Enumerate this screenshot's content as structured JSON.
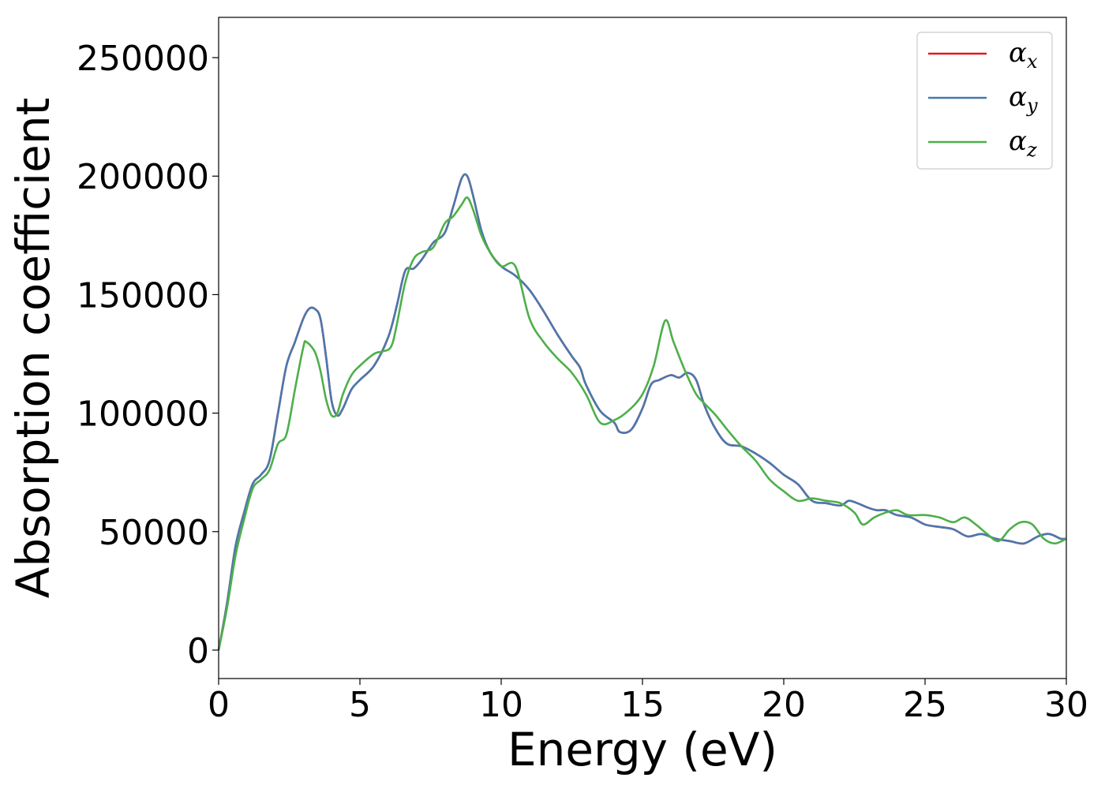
{
  "chart_data": {
    "type": "line",
    "xlabel": "Energy (eV)",
    "ylabel": "Absorption coefficient",
    "xlim": [
      0,
      30
    ],
    "ylim": [
      -12000,
      267000
    ],
    "xticks": [
      0,
      5,
      10,
      15,
      20,
      25,
      30
    ],
    "yticks": [
      0,
      50000,
      100000,
      150000,
      200000,
      250000
    ],
    "grid": false,
    "legend_position": "top-right",
    "series": [
      {
        "name": "αx",
        "symbol": "α",
        "subscript": "x",
        "color": "#e41a1c",
        "x": [
          0,
          0.3,
          0.6,
          0.9,
          1.2,
          1.5,
          1.8,
          2.1,
          2.4,
          2.7,
          3.0,
          3.2,
          3.4,
          3.6,
          3.8,
          4.0,
          4.2,
          4.4,
          4.7,
          5.0,
          5.5,
          6.0,
          6.3,
          6.6,
          6.9,
          7.2,
          7.6,
          8.0,
          8.3,
          8.6,
          8.8,
          9.0,
          9.3,
          9.6,
          10.0,
          10.5,
          11.0,
          11.5,
          12.0,
          12.5,
          12.8,
          13.0,
          13.5,
          14.0,
          14.2,
          14.6,
          15.0,
          15.3,
          15.6,
          16.0,
          16.3,
          16.6,
          16.9,
          17.2,
          17.6,
          18.0,
          18.5,
          19.0,
          19.5,
          20.0,
          20.5,
          21.0,
          21.5,
          22.0,
          22.3,
          22.6,
          23.0,
          23.3,
          23.6,
          24.0,
          24.5,
          25.0,
          25.5,
          26.0,
          26.5,
          27.0,
          27.5,
          28.0,
          28.5,
          29.0,
          29.4,
          29.8,
          30.0
        ],
        "y": [
          0,
          20000,
          44000,
          58000,
          70000,
          74000,
          80000,
          100000,
          120000,
          130000,
          140000,
          144000,
          144000,
          140000,
          124000,
          105000,
          99000,
          102000,
          110000,
          114000,
          120000,
          132000,
          145000,
          160000,
          161000,
          165000,
          172000,
          176000,
          187000,
          199000,
          200000,
          192000,
          177000,
          168000,
          162000,
          158000,
          152000,
          143000,
          133000,
          124000,
          119000,
          112000,
          101000,
          96000,
          92000,
          93000,
          102000,
          112000,
          114000,
          116000,
          115000,
          117000,
          114000,
          103000,
          93000,
          87000,
          86000,
          83000,
          79000,
          74000,
          70000,
          63000,
          62000,
          61000,
          63000,
          62000,
          60000,
          59000,
          59000,
          57000,
          56000,
          53000,
          52000,
          51000,
          48000,
          49000,
          47000,
          46000,
          45000,
          48000,
          49000,
          47000,
          47000
        ]
      },
      {
        "name": "αy",
        "symbol": "α",
        "subscript": "y",
        "color": "#4a78ad",
        "x": [
          0,
          0.3,
          0.6,
          0.9,
          1.2,
          1.5,
          1.8,
          2.1,
          2.4,
          2.7,
          3.0,
          3.2,
          3.4,
          3.6,
          3.8,
          4.0,
          4.2,
          4.4,
          4.7,
          5.0,
          5.5,
          6.0,
          6.3,
          6.6,
          6.9,
          7.2,
          7.6,
          8.0,
          8.3,
          8.6,
          8.8,
          9.0,
          9.3,
          9.6,
          10.0,
          10.5,
          11.0,
          11.5,
          12.0,
          12.5,
          12.8,
          13.0,
          13.5,
          14.0,
          14.2,
          14.6,
          15.0,
          15.3,
          15.6,
          16.0,
          16.3,
          16.6,
          16.9,
          17.2,
          17.6,
          18.0,
          18.5,
          19.0,
          19.5,
          20.0,
          20.5,
          21.0,
          21.5,
          22.0,
          22.3,
          22.6,
          23.0,
          23.3,
          23.6,
          24.0,
          24.5,
          25.0,
          25.5,
          26.0,
          26.5,
          27.0,
          27.5,
          28.0,
          28.5,
          29.0,
          29.4,
          29.8,
          30.0
        ],
        "y": [
          0,
          20000,
          44000,
          58000,
          70000,
          74000,
          80000,
          100000,
          120000,
          130000,
          140000,
          144000,
          144000,
          140000,
          124000,
          105000,
          99000,
          102000,
          110000,
          114000,
          120000,
          132000,
          145000,
          160000,
          161000,
          165000,
          172000,
          176000,
          187000,
          199000,
          200000,
          192000,
          177000,
          168000,
          162000,
          158000,
          152000,
          143000,
          133000,
          124000,
          119000,
          112000,
          101000,
          96000,
          92000,
          93000,
          102000,
          112000,
          114000,
          116000,
          115000,
          117000,
          114000,
          103000,
          93000,
          87000,
          86000,
          83000,
          79000,
          74000,
          70000,
          63000,
          62000,
          61000,
          63000,
          62000,
          60000,
          59000,
          59000,
          57000,
          56000,
          53000,
          52000,
          51000,
          48000,
          49000,
          47000,
          46000,
          45000,
          48000,
          49000,
          47000,
          47000
        ]
      },
      {
        "name": "αz",
        "symbol": "α",
        "subscript": "z",
        "color": "#4daf4a",
        "x": [
          0,
          0.3,
          0.6,
          0.9,
          1.2,
          1.5,
          1.8,
          2.1,
          2.4,
          2.7,
          3.0,
          3.1,
          3.4,
          3.6,
          3.8,
          4.0,
          4.2,
          4.4,
          4.7,
          5.0,
          5.5,
          5.8,
          6.1,
          6.3,
          6.6,
          6.9,
          7.2,
          7.6,
          8.0,
          8.3,
          8.6,
          8.8,
          9.0,
          9.3,
          9.6,
          10.0,
          10.5,
          11.0,
          11.5,
          12.0,
          12.5,
          13.0,
          13.5,
          14.0,
          14.5,
          15.0,
          15.4,
          15.8,
          16.1,
          16.5,
          16.9,
          17.2,
          17.6,
          18.0,
          18.5,
          19.0,
          19.5,
          20.0,
          20.5,
          21.0,
          21.5,
          22.0,
          22.5,
          22.8,
          23.2,
          23.6,
          24.0,
          24.4,
          25.0,
          25.5,
          26.0,
          26.4,
          26.8,
          27.2,
          27.6,
          28.0,
          28.4,
          28.8,
          29.2,
          29.6,
          30.0
        ],
        "y": [
          0,
          18000,
          40000,
          55000,
          68000,
          72000,
          76000,
          87000,
          91000,
          110000,
          128000,
          130000,
          126000,
          118000,
          106000,
          99000,
          100000,
          108000,
          116000,
          120000,
          125000,
          126000,
          128000,
          137000,
          155000,
          165000,
          168000,
          170000,
          180000,
          183000,
          188000,
          191000,
          186000,
          175000,
          168000,
          162000,
          162000,
          140000,
          130000,
          123000,
          117000,
          108000,
          96000,
          97000,
          101000,
          108000,
          120000,
          139000,
          130000,
          118000,
          108000,
          104000,
          99000,
          93000,
          86000,
          80000,
          72000,
          67000,
          63000,
          64000,
          63000,
          62000,
          58000,
          53000,
          56000,
          58000,
          59000,
          57000,
          57000,
          56000,
          54000,
          56000,
          53000,
          49000,
          46000,
          51000,
          54000,
          53000,
          47000,
          45000,
          47000
        ]
      }
    ]
  }
}
